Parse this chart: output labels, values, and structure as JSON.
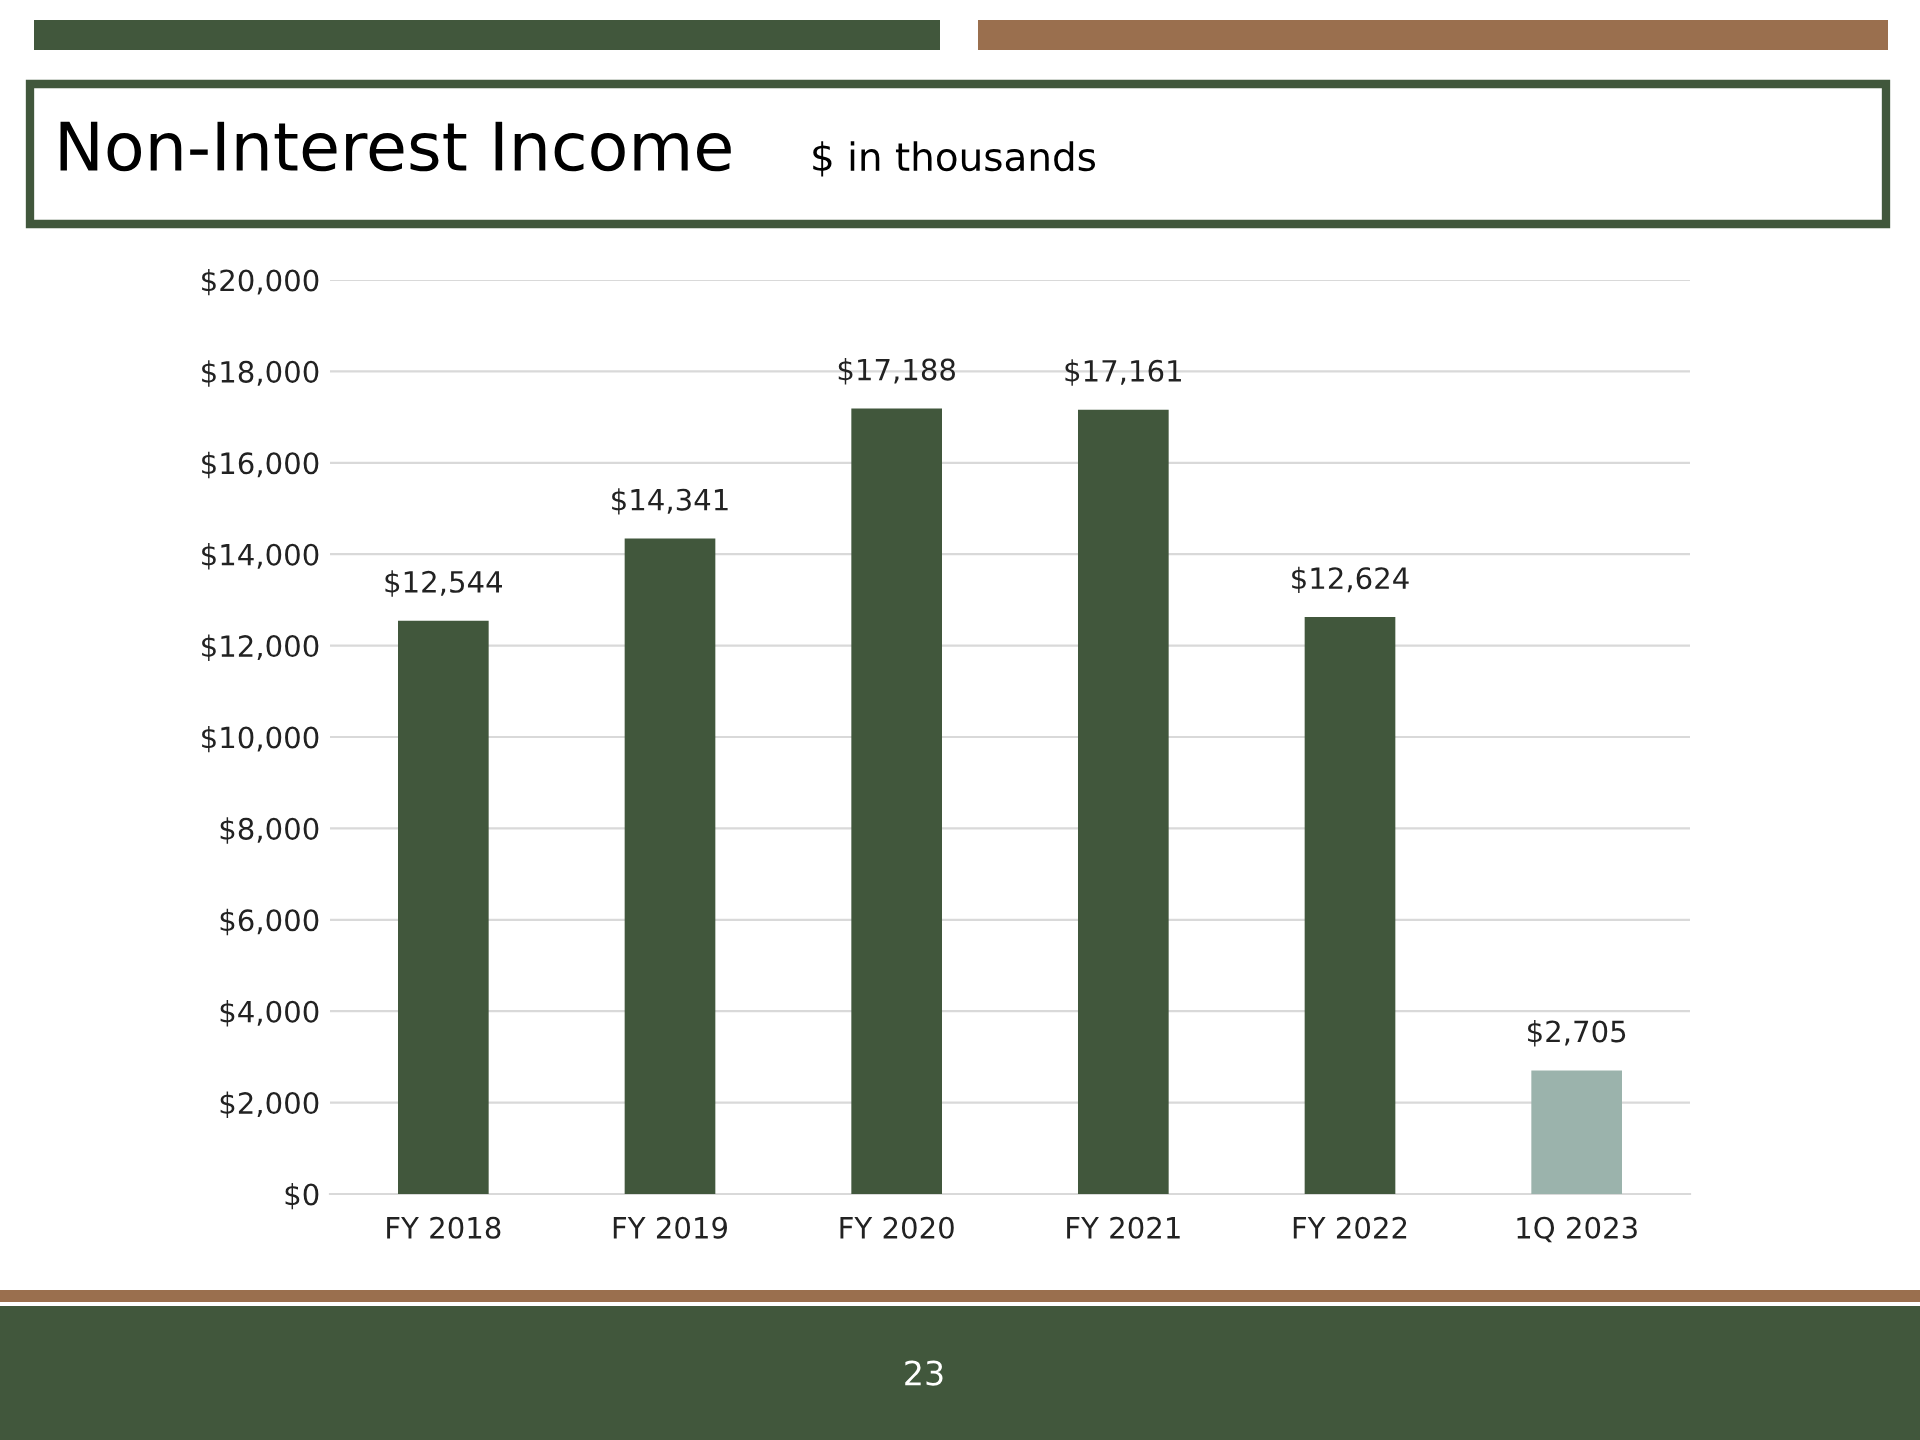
{
  "chart_data": {
    "type": "bar",
    "title": "Non-Interest Income",
    "subtitle": "$ in thousands",
    "categories": [
      "FY 2018",
      "FY 2019",
      "FY 2020",
      "FY 2021",
      "FY 2022",
      "1Q 2023"
    ],
    "values": [
      12544,
      14341,
      17188,
      17161,
      12624,
      2705
    ],
    "colors": [
      "#41573c",
      "#41573c",
      "#41573c",
      "#41573c",
      "#41573c",
      "#9bb3ac"
    ],
    "value_labels": [
      "$12,544",
      "$14,341",
      "$17,188",
      "$17,161",
      "$12,624",
      "$2,705"
    ],
    "ylim": [
      0,
      20000
    ],
    "yticks": [
      {
        "value": 0,
        "label": "$0"
      },
      {
        "value": 2000,
        "label": "$2,000"
      },
      {
        "value": 4000,
        "label": "$4,000"
      },
      {
        "value": 6000,
        "label": "$6,000"
      },
      {
        "value": 8000,
        "label": "$8,000"
      },
      {
        "value": 10000,
        "label": "$10,000"
      },
      {
        "value": 12000,
        "label": "$12,000"
      },
      {
        "value": 14000,
        "label": "$14,000"
      },
      {
        "value": 16000,
        "label": "$16,000"
      },
      {
        "value": 18000,
        "label": "$18,000"
      },
      {
        "value": 20000,
        "label": "$20,000"
      }
    ],
    "grid": "y",
    "annotations": [
      "23"
    ]
  }
}
